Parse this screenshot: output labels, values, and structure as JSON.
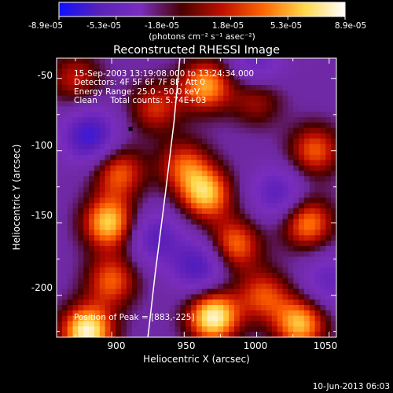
{
  "chart_data": {
    "type": "heatmap",
    "title": "Reconstructed RHESSI Image",
    "xlabel": "Heliocentric X (arcsec)",
    "ylabel": "Heliocentric Y (arcsec)",
    "xlim": [
      862,
      1055
    ],
    "ylim": [
      -229,
      -36
    ],
    "x_ticks": [
      "900",
      "950",
      "1000",
      "1050"
    ],
    "y_ticks": [
      "-50",
      "-100",
      "-150",
      "-200"
    ],
    "grid": false,
    "colorbar": {
      "min": -8.9e-05,
      "max": 8.9e-05,
      "tick_labels": [
        "-8.9e-05",
        "-5.3e-05",
        "-1.8e-05",
        "1.8e-05",
        "5.3e-05",
        "8.9e-05"
      ],
      "units_label": "(photons cm⁻² s⁻¹ asec⁻²)",
      "colors": [
        "#1010ff",
        "#5a22b8",
        "#7a2dbf",
        "#4a0000",
        "#c01000",
        "#ff6600",
        "#ffd84a",
        "#ffffff"
      ]
    },
    "annotations": [
      "15-Sep-2003 13:19:08.000 to 13:24:34.000",
      "Detectors: 4F 5F 6F 7F 8F, Att 0",
      "Energy Range: 25.0 - 50.0 keV",
      "Clean     Total counts: 5.74E+03",
      "Position of Peak = [883,-225]"
    ],
    "peak": [
      883,
      -225
    ],
    "limb_curve": {
      "x": [
        947,
        943,
        937,
        930,
        925
      ],
      "y": [
        -36,
        -80,
        -130,
        -185,
        -229
      ]
    },
    "marker": [
      913,
      -85
    ],
    "hotspots": [
      {
        "x": 883,
        "y": -225,
        "v": 1.0
      },
      {
        "x": 970,
        "y": -215,
        "v": 1.0
      },
      {
        "x": 898,
        "y": -150,
        "v": 0.85
      },
      {
        "x": 905,
        "y": -115,
        "v": 0.6
      },
      {
        "x": 900,
        "y": -190,
        "v": 0.6
      },
      {
        "x": 965,
        "y": -55,
        "v": 0.75
      },
      {
        "x": 930,
        "y": -70,
        "v": 0.5
      },
      {
        "x": 965,
        "y": -130,
        "v": 0.8
      },
      {
        "x": 985,
        "y": -165,
        "v": 0.65
      },
      {
        "x": 1005,
        "y": -200,
        "v": 0.55
      },
      {
        "x": 1030,
        "y": -220,
        "v": 0.8
      },
      {
        "x": 1035,
        "y": -150,
        "v": 0.7
      },
      {
        "x": 1040,
        "y": -100,
        "v": 0.6
      },
      {
        "x": 1000,
        "y": -65,
        "v": 0.4
      },
      {
        "x": 950,
        "y": -110,
        "v": 0.55
      },
      {
        "x": 875,
        "y": -50,
        "v": 0.45
      },
      {
        "x": 885,
        "y": -90,
        "v": -0.7
      },
      {
        "x": 960,
        "y": -180,
        "v": -0.6
      },
      {
        "x": 1015,
        "y": -130,
        "v": -0.5
      },
      {
        "x": 1000,
        "y": -40,
        "v": -0.4
      },
      {
        "x": 930,
        "y": -160,
        "v": -0.5
      },
      {
        "x": 1050,
        "y": -190,
        "v": -0.4
      }
    ]
  },
  "footer": {
    "timestamp": "10-Jun-2013 06:03"
  }
}
